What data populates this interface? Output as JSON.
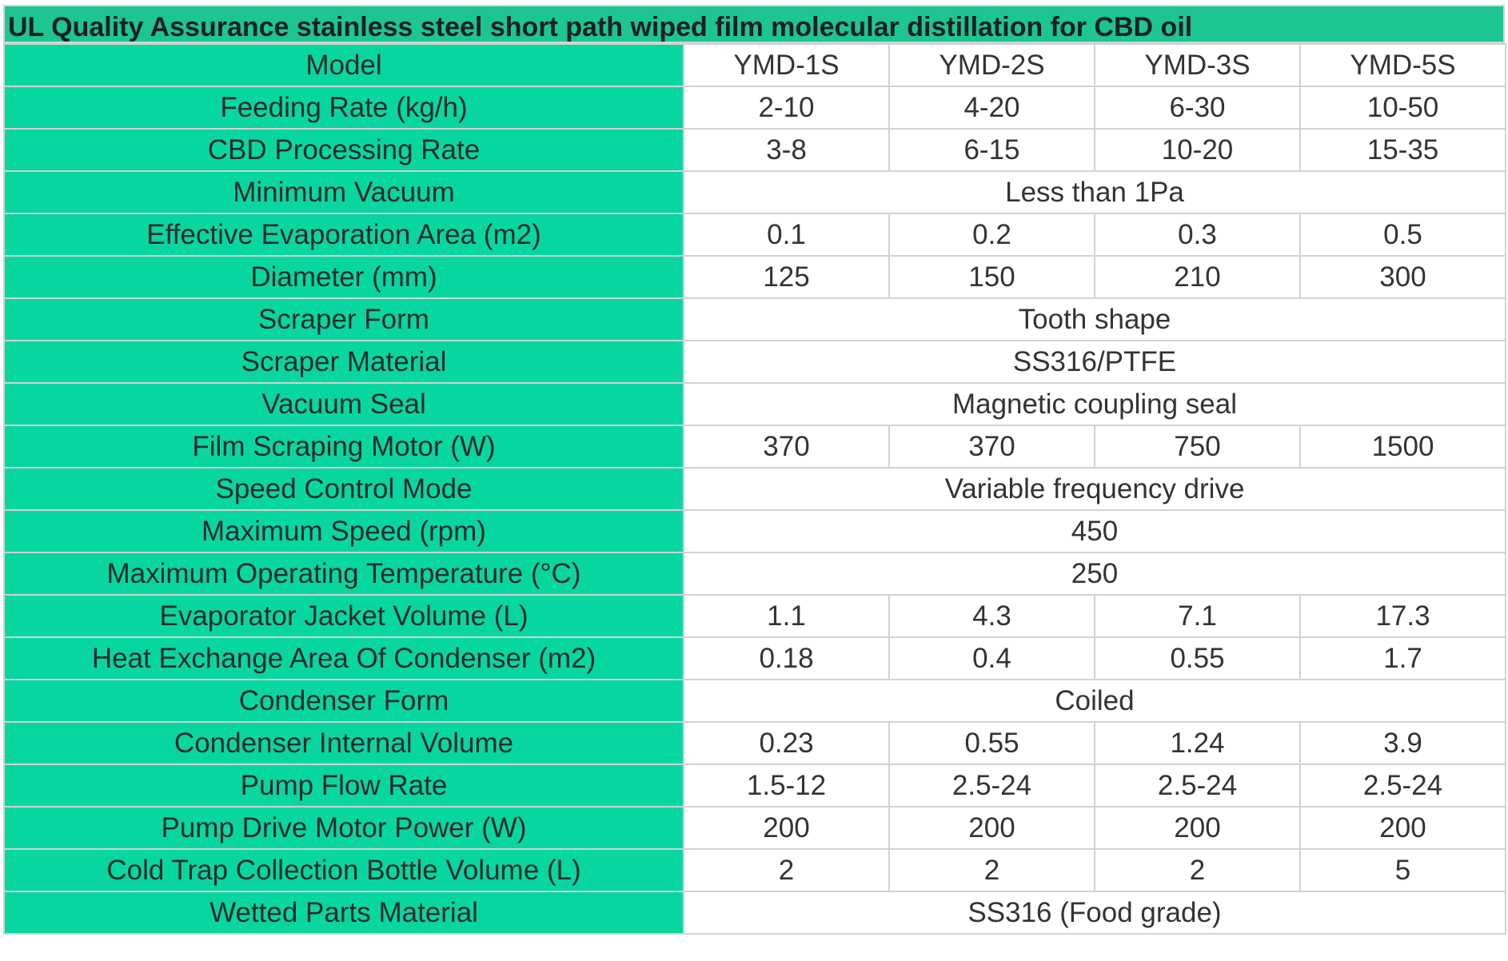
{
  "title": "UL Quality Assurance stainless steel short path wiped film molecular distillation for CBD oil",
  "rows": [
    {
      "label": "Model",
      "values": [
        "YMD-1S",
        "YMD-2S",
        "YMD-3S",
        "YMD-5S"
      ]
    },
    {
      "label": "Feeding Rate (kg/h)",
      "values": [
        "2-10",
        "4-20",
        "6-30",
        "10-50"
      ]
    },
    {
      "label": "CBD Processing Rate",
      "values": [
        "3-8",
        "6-15",
        "10-20",
        "15-35"
      ]
    },
    {
      "label": "Minimum Vacuum",
      "values": [
        "Less than 1Pa"
      ]
    },
    {
      "label": "Effective Evaporation Area (m2)",
      "values": [
        "0.1",
        "0.2",
        "0.3",
        "0.5"
      ]
    },
    {
      "label": "Diameter (mm)",
      "values": [
        "125",
        "150",
        "210",
        "300"
      ]
    },
    {
      "label": "Scraper Form",
      "values": [
        "Tooth shape"
      ]
    },
    {
      "label": "Scraper Material",
      "values": [
        "SS316/PTFE"
      ]
    },
    {
      "label": "Vacuum Seal",
      "values": [
        "Magnetic coupling seal"
      ]
    },
    {
      "label": "Film Scraping Motor (W)",
      "values": [
        "370",
        "370",
        "750",
        "1500"
      ]
    },
    {
      "label": "Speed Control Mode",
      "values": [
        "Variable frequency drive"
      ]
    },
    {
      "label": "Maximum Speed (rpm)",
      "values": [
        "450"
      ]
    },
    {
      "label": "Maximum Operating Temperature (°C)",
      "values": [
        "250"
      ]
    },
    {
      "label": "Evaporator Jacket Volume (L)",
      "values": [
        "1.1",
        "4.3",
        "7.1",
        "17.3"
      ]
    },
    {
      "label": "Heat Exchange Area Of Condenser (m2)",
      "values": [
        "0.18",
        "0.4",
        "0.55",
        "1.7"
      ]
    },
    {
      "label": "Condenser Form",
      "values": [
        "Coiled"
      ]
    },
    {
      "label": "Condenser Internal Volume",
      "values": [
        "0.23",
        "0.55",
        "1.24",
        "3.9"
      ]
    },
    {
      "label": "Pump Flow Rate",
      "values": [
        "1.5-12",
        "2.5-24",
        "2.5-24",
        "2.5-24"
      ]
    },
    {
      "label": "Pump Drive Motor Power (W)",
      "values": [
        "200",
        "200",
        "200",
        "200"
      ]
    },
    {
      "label": "Cold Trap Collection Bottle Volume (L)",
      "values": [
        "2",
        "2",
        "2",
        "5"
      ]
    },
    {
      "label": "Wetted Parts Material",
      "values": [
        "SS316 (Food grade)"
      ]
    }
  ],
  "colors": {
    "label_bg": "#07d6a1",
    "title_bg": "#1cc592",
    "border": "#cfd3d2"
  }
}
